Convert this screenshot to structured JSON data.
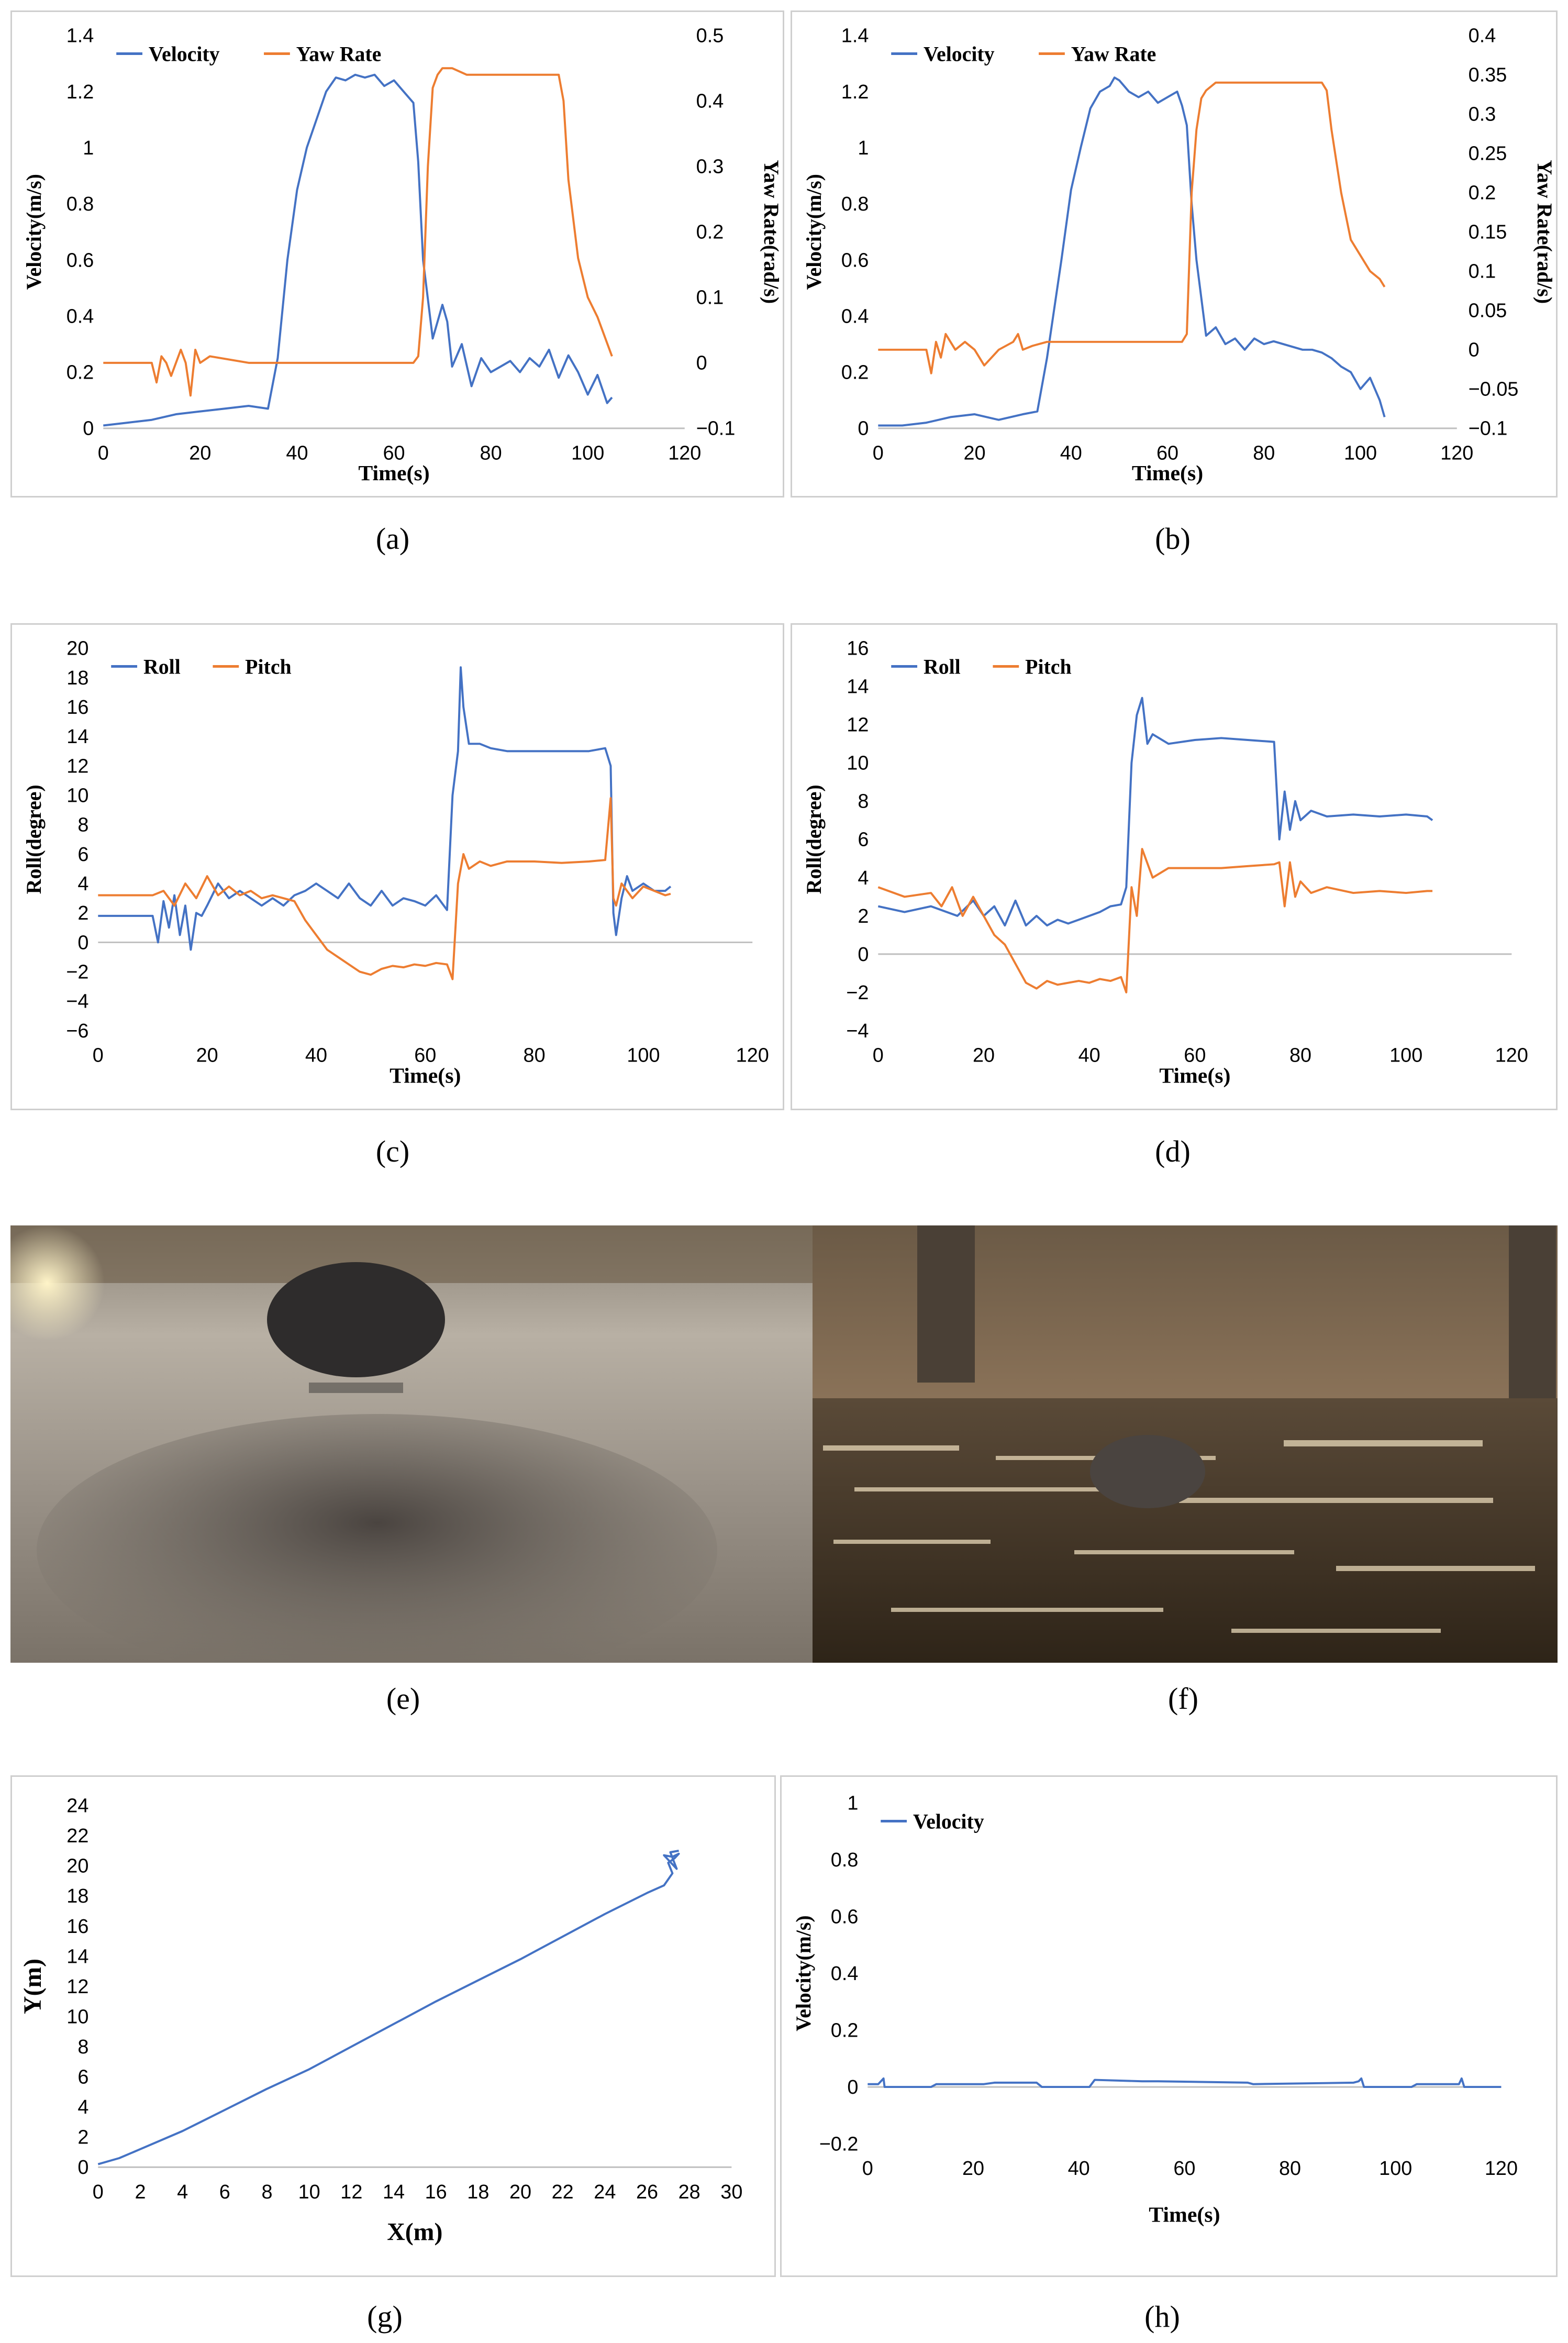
{
  "captions": {
    "a": "(a)",
    "b": "(b)",
    "c": "(c)",
    "d": "(d)",
    "e": "(e)",
    "f": "(f)",
    "g": "(g)",
    "h": "(h)"
  },
  "colors": {
    "blue": "#4472c4",
    "orange": "#ed7d31"
  },
  "chart_data": [
    {
      "id": "a",
      "type": "line",
      "xlabel": "Time(s)",
      "ylabel": "Velocity(m/s)",
      "y2label": "Yaw Rate(rad/s)",
      "xlim": [
        0,
        120
      ],
      "xticks": [
        0,
        20,
        40,
        60,
        80,
        100,
        120
      ],
      "ylim": [
        0,
        1.4
      ],
      "yticks": [
        0,
        0.2,
        0.4,
        0.6,
        0.8,
        1,
        1.2,
        1.4
      ],
      "y2lim": [
        -0.1,
        0.5
      ],
      "y2ticks": [
        -0.1,
        0,
        0.1,
        0.2,
        0.3,
        0.4,
        0.5
      ],
      "legend_position": "top-left",
      "series": [
        {
          "name": "Velocity",
          "axis": "left",
          "color": "#4472c4",
          "x": [
            0,
            5,
            10,
            15,
            20,
            25,
            30,
            34,
            36,
            38,
            40,
            42,
            44,
            46,
            48,
            50,
            52,
            54,
            56,
            58,
            60,
            62,
            64,
            65,
            66,
            68,
            70,
            71,
            72,
            74,
            76,
            78,
            80,
            82,
            84,
            86,
            88,
            90,
            92,
            94,
            96,
            98,
            100,
            102,
            104,
            105
          ],
          "y": [
            0.01,
            0.02,
            0.03,
            0.05,
            0.06,
            0.07,
            0.08,
            0.07,
            0.25,
            0.6,
            0.85,
            1.0,
            1.1,
            1.2,
            1.25,
            1.24,
            1.26,
            1.25,
            1.26,
            1.22,
            1.24,
            1.2,
            1.16,
            0.95,
            0.6,
            0.32,
            0.44,
            0.38,
            0.22,
            0.3,
            0.15,
            0.25,
            0.2,
            0.22,
            0.24,
            0.2,
            0.25,
            0.22,
            0.28,
            0.18,
            0.26,
            0.2,
            0.12,
            0.19,
            0.09,
            0.11
          ]
        },
        {
          "name": "Yaw Rate",
          "axis": "right",
          "color": "#ed7d31",
          "x": [
            0,
            10,
            11,
            12,
            13,
            14,
            16,
            17,
            18,
            19,
            20,
            22,
            30,
            40,
            50,
            60,
            64,
            65,
            66,
            67,
            68,
            69,
            70,
            72,
            75,
            80,
            85,
            90,
            94,
            95,
            96,
            98,
            100,
            102,
            104,
            105
          ],
          "y": [
            0,
            0,
            -0.03,
            0.01,
            0,
            -0.02,
            0.02,
            0,
            -0.05,
            0.02,
            0,
            0.01,
            0,
            0,
            0,
            0,
            0,
            0.01,
            0.1,
            0.3,
            0.42,
            0.44,
            0.45,
            0.45,
            0.44,
            0.44,
            0.44,
            0.44,
            0.44,
            0.4,
            0.28,
            0.16,
            0.1,
            0.07,
            0.03,
            0.01
          ]
        }
      ]
    },
    {
      "id": "b",
      "type": "line",
      "xlabel": "Time(s)",
      "ylabel": "Velocity(m/s)",
      "y2label": "Yaw Rate(rad/s)",
      "xlim": [
        0,
        120
      ],
      "xticks": [
        0,
        20,
        40,
        60,
        80,
        100,
        120
      ],
      "ylim": [
        0,
        1.4
      ],
      "yticks": [
        0,
        0.2,
        0.4,
        0.6,
        0.8,
        1,
        1.2,
        1.4
      ],
      "y2lim": [
        -0.1,
        0.4
      ],
      "y2ticks": [
        -0.1,
        -0.05,
        0,
        0.05,
        0.1,
        0.15,
        0.2,
        0.25,
        0.3,
        0.35,
        0.4
      ],
      "legend_position": "top-left",
      "series": [
        {
          "name": "Velocity",
          "axis": "left",
          "color": "#4472c4",
          "x": [
            0,
            5,
            10,
            15,
            20,
            25,
            30,
            33,
            35,
            38,
            40,
            42,
            44,
            46,
            48,
            49,
            50,
            52,
            54,
            56,
            58,
            60,
            62,
            63,
            64,
            65,
            66,
            68,
            70,
            72,
            74,
            76,
            78,
            80,
            82,
            84,
            86,
            88,
            90,
            92,
            94,
            96,
            98,
            100,
            102,
            104,
            105
          ],
          "y": [
            0.01,
            0.01,
            0.02,
            0.04,
            0.05,
            0.03,
            0.05,
            0.06,
            0.25,
            0.6,
            0.85,
            1.0,
            1.14,
            1.2,
            1.22,
            1.25,
            1.24,
            1.2,
            1.18,
            1.2,
            1.16,
            1.18,
            1.2,
            1.15,
            1.08,
            0.8,
            0.6,
            0.33,
            0.36,
            0.3,
            0.32,
            0.28,
            0.32,
            0.3,
            0.31,
            0.3,
            0.29,
            0.28,
            0.28,
            0.27,
            0.25,
            0.22,
            0.2,
            0.14,
            0.18,
            0.1,
            0.04
          ]
        },
        {
          "name": "Yaw Rate",
          "axis": "right",
          "color": "#ed7d31",
          "x": [
            0,
            10,
            11,
            12,
            13,
            14,
            16,
            18,
            20,
            22,
            25,
            28,
            29,
            30,
            32,
            35,
            40,
            50,
            60,
            63,
            64,
            65,
            66,
            67,
            68,
            70,
            72,
            75,
            80,
            85,
            90,
            92,
            93,
            94,
            96,
            98,
            100,
            102,
            104,
            105
          ],
          "y": [
            0,
            0,
            -0.03,
            0.01,
            -0.01,
            0.02,
            0.0,
            0.01,
            0,
            -0.02,
            0,
            0.01,
            0.02,
            0.0,
            0.005,
            0.01,
            0.01,
            0.01,
            0.01,
            0.01,
            0.02,
            0.2,
            0.28,
            0.32,
            0.33,
            0.34,
            0.34,
            0.34,
            0.34,
            0.34,
            0.34,
            0.34,
            0.33,
            0.28,
            0.2,
            0.14,
            0.12,
            0.1,
            0.09,
            0.08
          ]
        }
      ]
    },
    {
      "id": "c",
      "type": "line",
      "xlabel": "Time(s)",
      "ylabel": "Roll(degree)",
      "xlim": [
        0,
        120
      ],
      "xticks": [
        0,
        20,
        40,
        60,
        80,
        100,
        120
      ],
      "ylim": [
        -6,
        20
      ],
      "yticks": [
        -6,
        -4,
        -2,
        0,
        2,
        4,
        6,
        8,
        10,
        12,
        14,
        16,
        18,
        20
      ],
      "legend_position": "top-left",
      "series": [
        {
          "name": "Roll",
          "color": "#4472c4",
          "x": [
            0,
            10,
            11,
            12,
            13,
            14,
            15,
            16,
            17,
            18,
            19,
            20,
            22,
            24,
            26,
            28,
            30,
            32,
            34,
            36,
            38,
            40,
            42,
            44,
            46,
            48,
            50,
            52,
            54,
            56,
            58,
            60,
            62,
            64,
            65,
            66,
            66.5,
            67,
            68,
            70,
            72,
            75,
            80,
            85,
            90,
            93,
            94,
            94.5,
            95,
            96,
            97,
            98,
            100,
            102,
            104,
            105
          ],
          "y": [
            1.8,
            1.8,
            0.0,
            2.8,
            1.0,
            3.2,
            0.5,
            2.5,
            -0.5,
            2.0,
            1.8,
            2.5,
            4.0,
            3.0,
            3.5,
            3.0,
            2.5,
            3.0,
            2.5,
            3.2,
            3.5,
            4.0,
            3.5,
            3.0,
            4.0,
            3.0,
            2.5,
            3.5,
            2.5,
            3.0,
            2.8,
            2.5,
            3.2,
            2.2,
            10.0,
            13.0,
            18.7,
            16.0,
            13.5,
            13.5,
            13.2,
            13.0,
            13.0,
            13.0,
            13.0,
            13.2,
            12.0,
            2.0,
            0.5,
            3.0,
            4.5,
            3.5,
            4.0,
            3.5,
            3.5,
            3.8
          ]
        },
        {
          "name": "Pitch",
          "color": "#ed7d31",
          "x": [
            0,
            10,
            12,
            14,
            16,
            18,
            20,
            22,
            24,
            26,
            28,
            30,
            32,
            34,
            36,
            38,
            40,
            42,
            44,
            46,
            48,
            50,
            52,
            54,
            56,
            58,
            60,
            62,
            64,
            65,
            66,
            67,
            68,
            70,
            72,
            75,
            80,
            85,
            90,
            93,
            94,
            94.5,
            95,
            96,
            98,
            100,
            102,
            104,
            105
          ],
          "y": [
            3.2,
            3.2,
            3.5,
            2.5,
            4.0,
            3.0,
            4.5,
            3.2,
            3.8,
            3.2,
            3.5,
            3.0,
            3.2,
            3.0,
            2.8,
            1.5,
            0.5,
            -0.5,
            -1.0,
            -1.5,
            -2.0,
            -2.2,
            -1.8,
            -1.6,
            -1.7,
            -1.5,
            -1.6,
            -1.4,
            -1.5,
            -2.5,
            4.0,
            6.0,
            5.0,
            5.5,
            5.2,
            5.5,
            5.5,
            5.4,
            5.5,
            5.6,
            9.8,
            3.0,
            2.5,
            4.0,
            3.0,
            3.8,
            3.5,
            3.2,
            3.3
          ]
        }
      ]
    },
    {
      "id": "d",
      "type": "line",
      "xlabel": "Time(s)",
      "ylabel": "Roll(degree)",
      "xlim": [
        0,
        120
      ],
      "xticks": [
        0,
        20,
        40,
        60,
        80,
        100,
        120
      ],
      "ylim": [
        -4,
        16
      ],
      "yticks": [
        -4,
        -2,
        0,
        2,
        4,
        6,
        8,
        10,
        12,
        14,
        16
      ],
      "legend_position": "top-left",
      "series": [
        {
          "name": "Roll",
          "color": "#4472c4",
          "x": [
            0,
            5,
            10,
            15,
            18,
            20,
            22,
            24,
            26,
            28,
            30,
            32,
            34,
            36,
            38,
            40,
            42,
            44,
            46,
            47,
            48,
            49,
            50,
            51,
            52,
            55,
            60,
            65,
            70,
            75,
            76,
            77,
            78,
            79,
            80,
            82,
            85,
            90,
            95,
            100,
            104,
            105
          ],
          "y": [
            2.5,
            2.2,
            2.5,
            2.0,
            2.8,
            2.0,
            2.5,
            1.5,
            2.8,
            1.5,
            2.0,
            1.5,
            1.8,
            1.6,
            1.8,
            2.0,
            2.2,
            2.5,
            2.6,
            3.5,
            10.0,
            12.5,
            13.4,
            11.0,
            11.5,
            11.0,
            11.2,
            11.3,
            11.2,
            11.1,
            6.0,
            8.5,
            6.5,
            8.0,
            7.0,
            7.5,
            7.2,
            7.3,
            7.2,
            7.3,
            7.2,
            7.0
          ]
        },
        {
          "name": "Pitch",
          "color": "#ed7d31",
          "x": [
            0,
            5,
            10,
            12,
            14,
            16,
            18,
            20,
            22,
            24,
            26,
            28,
            30,
            32,
            34,
            36,
            38,
            40,
            42,
            44,
            46,
            47,
            48,
            49,
            50,
            52,
            55,
            60,
            65,
            70,
            75,
            76,
            77,
            78,
            79,
            80,
            82,
            85,
            90,
            95,
            100,
            104,
            105
          ],
          "y": [
            3.5,
            3.0,
            3.2,
            2.5,
            3.5,
            2.0,
            3.0,
            2.0,
            1.0,
            0.5,
            -0.5,
            -1.5,
            -1.8,
            -1.4,
            -1.6,
            -1.5,
            -1.4,
            -1.5,
            -1.3,
            -1.4,
            -1.2,
            -2.0,
            3.5,
            2.0,
            5.5,
            4.0,
            4.5,
            4.5,
            4.5,
            4.6,
            4.7,
            4.8,
            2.5,
            4.8,
            3.0,
            3.8,
            3.2,
            3.5,
            3.2,
            3.3,
            3.2,
            3.3,
            3.3
          ]
        }
      ]
    },
    {
      "id": "g",
      "type": "line",
      "xlabel": "X(m)",
      "ylabel": "Y(m)",
      "xlim": [
        0,
        30
      ],
      "xticks": [
        0,
        2,
        4,
        6,
        8,
        10,
        12,
        14,
        16,
        18,
        20,
        22,
        24,
        26,
        28,
        30
      ],
      "ylim": [
        0,
        24
      ],
      "yticks": [
        0,
        2,
        4,
        6,
        8,
        10,
        12,
        14,
        16,
        18,
        20,
        22,
        24
      ],
      "series": [
        {
          "name": "",
          "color": "#4472c4",
          "x": [
            0,
            0.5,
            1,
            2,
            4,
            6,
            8,
            10,
            12,
            14,
            16,
            18,
            20,
            22,
            24,
            26,
            26.8,
            27.2,
            27.0,
            27.3,
            27.5,
            27.2,
            26.8,
            27.4,
            27.1,
            27.5
          ],
          "y": [
            0.2,
            0.4,
            0.6,
            1.2,
            2.4,
            3.8,
            5.2,
            6.5,
            8.0,
            9.5,
            11.0,
            12.4,
            13.8,
            15.3,
            16.8,
            18.2,
            18.7,
            19.5,
            20.2,
            20.5,
            20.8,
            20.6,
            20.7,
            19.8,
            20.9,
            21.0
          ]
        }
      ]
    },
    {
      "id": "h",
      "type": "line",
      "xlabel": "Time(s)",
      "ylabel": "Velocity(m/s)",
      "xlim": [
        0,
        120
      ],
      "xticks": [
        0,
        20,
        40,
        60,
        80,
        100,
        120
      ],
      "ylim": [
        -0.2,
        1
      ],
      "yticks": [
        -0.2,
        0,
        0.2,
        0.4,
        0.6,
        0.8,
        1
      ],
      "legend_position": "top-left",
      "series": [
        {
          "name": "Velocity",
          "color": "#4472c4",
          "x": [
            0,
            2,
            3,
            3.2,
            3.5,
            12,
            13,
            22,
            24,
            32,
            33,
            42,
            43,
            52,
            55,
            72,
            73,
            92,
            93,
            93.5,
            94,
            103,
            104,
            112,
            112.5,
            113,
            114,
            120
          ],
          "y": [
            0.01,
            0.01,
            0.03,
            0.0,
            0.0,
            0.0,
            0.01,
            0.01,
            0.015,
            0.015,
            0.0,
            0.0,
            0.025,
            0.02,
            0.02,
            0.015,
            0.01,
            0.015,
            0.02,
            0.03,
            0.0,
            0.0,
            0.01,
            0.01,
            0.03,
            0.0,
            0.0,
            0.0
          ]
        }
      ]
    }
  ]
}
